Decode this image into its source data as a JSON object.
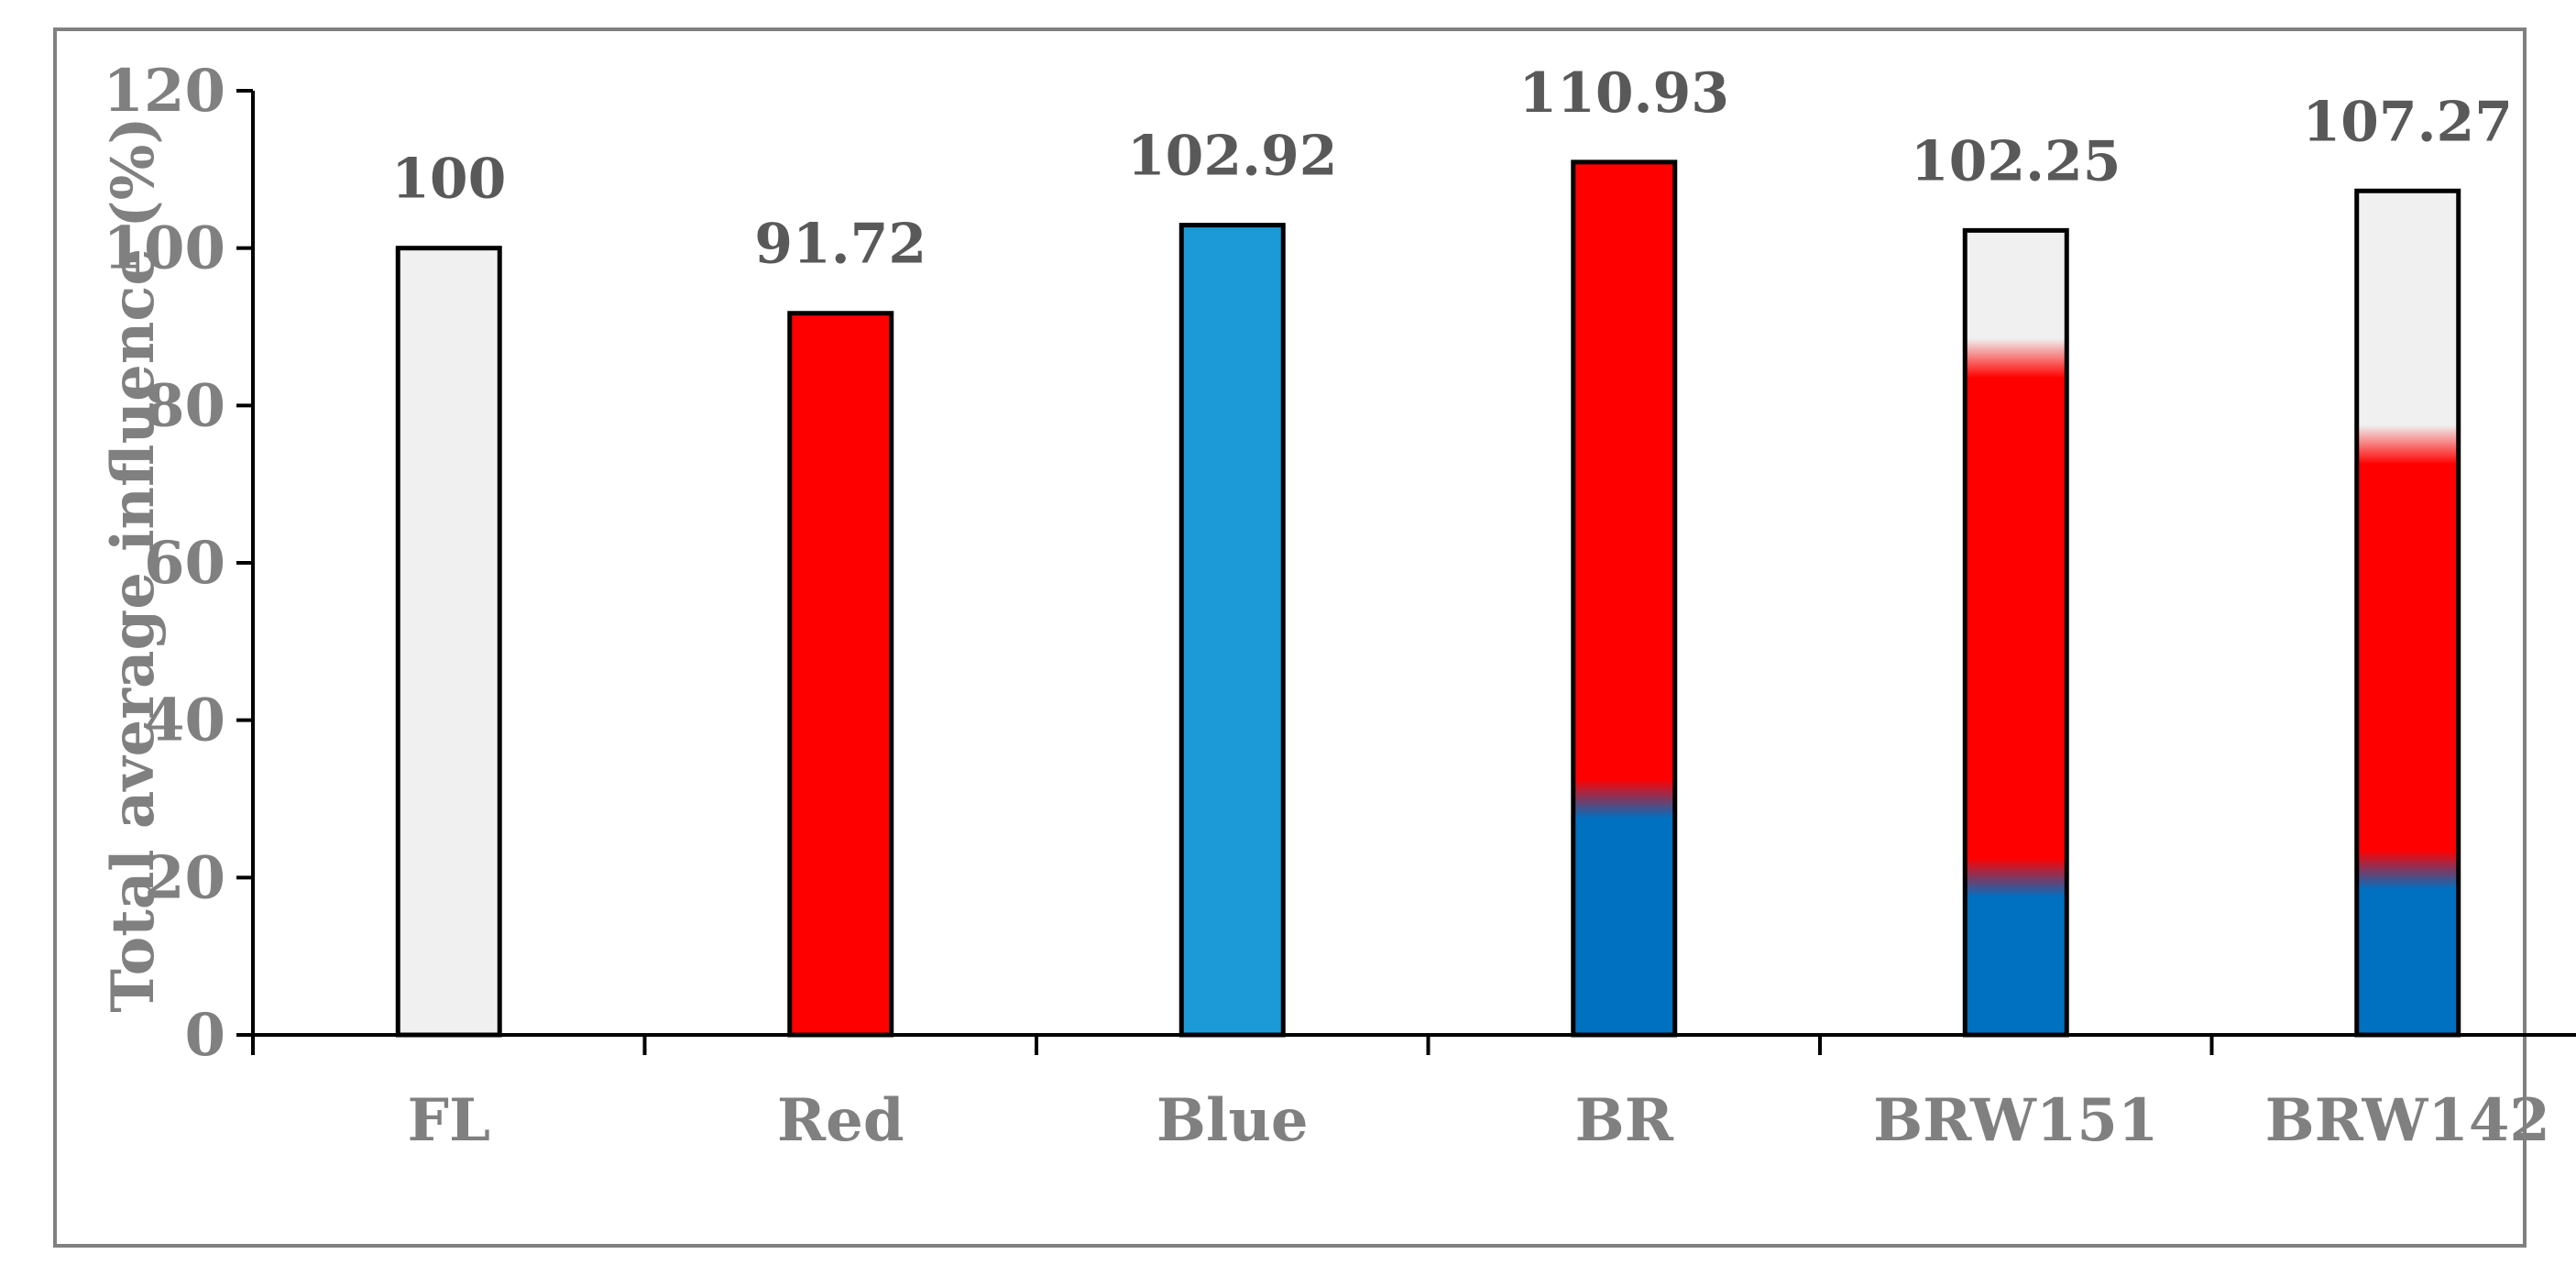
{
  "chart_data": {
    "type": "bar",
    "ylabel": "Total average influence (%)",
    "xlabel": "",
    "ylim": [
      0,
      120
    ],
    "yticks": [
      0,
      20,
      40,
      60,
      80,
      100,
      120
    ],
    "categories": [
      "FL",
      "Red",
      "Blue",
      "BR",
      "BRW151",
      "BRW142"
    ],
    "values": [
      100,
      91.72,
      102.92,
      110.93,
      102.25,
      107.27
    ],
    "value_labels": [
      "100",
      "91.72",
      "102.92",
      "110.93",
      "102.25",
      "107.27"
    ],
    "stacked_segments": [
      [
        {
          "component": "white",
          "value": 100
        }
      ],
      [
        {
          "component": "red",
          "value": 91.72
        }
      ],
      [
        {
          "component": "blue",
          "value": 102.92
        }
      ],
      [
        {
          "component": "blue",
          "value": 30
        },
        {
          "component": "red",
          "value": 80.93
        }
      ],
      [
        {
          "component": "blue",
          "value": 20
        },
        {
          "component": "red",
          "value": 66
        },
        {
          "component": "white",
          "value": 16.25
        }
      ],
      [
        {
          "component": "blue",
          "value": 21
        },
        {
          "component": "red",
          "value": 54
        },
        {
          "component": "white",
          "value": 32.27
        }
      ]
    ],
    "colors": {
      "white": "#f0f0f0",
      "red": "#ff0000",
      "blue": "#0070c0",
      "light_blue": "#1b9ad7",
      "outline": "#000000",
      "text": "#808080",
      "value_text": "#595959"
    },
    "grid": false,
    "legend": "none"
  }
}
